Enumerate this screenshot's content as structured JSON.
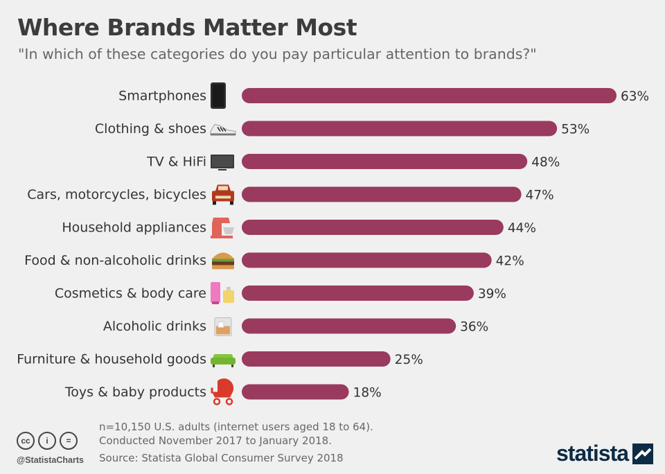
{
  "title": "Where Brands Matter Most",
  "subtitle": "\"In which of these categories do you pay particular attention to brands?\"",
  "chart_data": {
    "type": "bar",
    "orientation": "horizontal",
    "title": "Where Brands Matter Most",
    "subtitle": "\"In which of these categories do you pay particular attention to brands?\"",
    "categories": [
      "Smartphones",
      "Clothing & shoes",
      "TV & HiFi",
      "Cars, motorcycles, bicycles",
      "Household appliances",
      "Food & non-alcoholic drinks",
      "Cosmetics & body care",
      "Alcoholic drinks",
      "Furniture & household goods",
      "Toys & baby products"
    ],
    "values": [
      63,
      53,
      48,
      47,
      44,
      42,
      39,
      36,
      25,
      18
    ],
    "value_labels": [
      "63%",
      "53%",
      "48%",
      "47%",
      "44%",
      "42%",
      "39%",
      "36%",
      "25%",
      "18%"
    ],
    "icons": [
      "smartphone-icon",
      "sneaker-icon",
      "tv-icon",
      "car-icon",
      "stand-mixer-icon",
      "burger-icon",
      "cosmetics-icon",
      "whisky-glass-icon",
      "sofa-icon",
      "stroller-icon"
    ],
    "unit": "%",
    "xlim": [
      0,
      63
    ],
    "grid": false,
    "bar_color": "#993a5e"
  },
  "footer": {
    "note_line1": "n=10,150 U.S. adults (internet users aged 18 to 64).",
    "note_line2": "Conducted November 2017 to January 2018.",
    "source": "Source: Statista Global Consumer Survey 2018",
    "handle": "@StatistaCharts",
    "brand": "statista",
    "cc_icons": [
      "cc",
      "i",
      "="
    ]
  },
  "colors": {
    "bar": "#993a5e",
    "background": "#f0f0f0",
    "brand": "#0d2b45"
  }
}
